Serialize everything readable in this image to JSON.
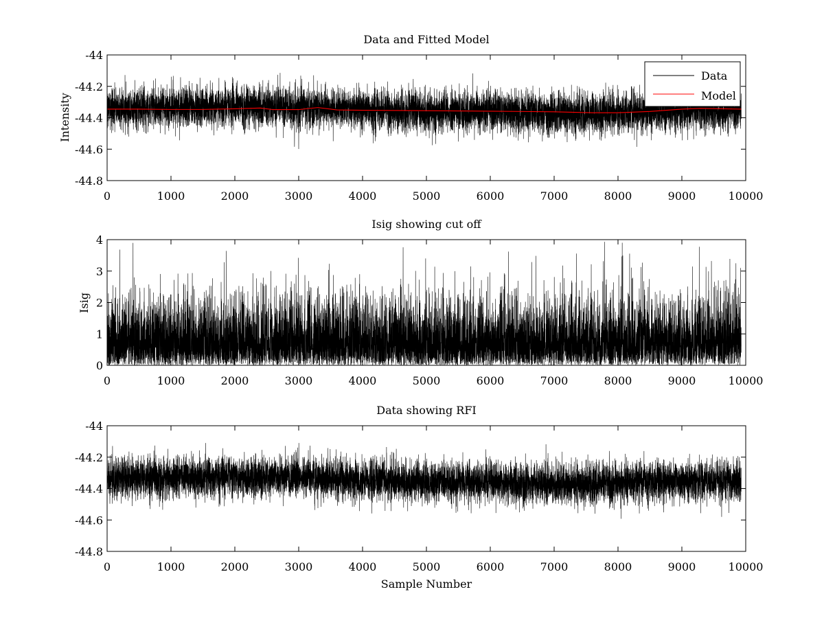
{
  "chart_data": [
    {
      "type": "line",
      "title": "Data and Fitted Model",
      "xlabel": "",
      "ylabel": "Intensity",
      "xlim": [
        0,
        10000
      ],
      "ylim": [
        -44.8,
        -44
      ],
      "xticks": [
        "0",
        "1000",
        "2000",
        "3000",
        "4000",
        "5000",
        "6000",
        "7000",
        "8000",
        "9000",
        "10000"
      ],
      "yticks": [
        "-44",
        "-44.2",
        "-44.4",
        "-44.6",
        "-44.8"
      ],
      "grid": false,
      "legend": "top-right",
      "series": [
        {
          "name": "Data",
          "color": "#000000",
          "n_points": 9930,
          "baseline": {
            "x": [
              0,
              1000,
              2000,
              3000,
              4000,
              5000,
              6000,
              7000,
              8000,
              9000,
              9930
            ],
            "y": [
              -44.34,
              -44.33,
              -44.33,
              -44.33,
              -44.35,
              -44.36,
              -44.36,
              -44.37,
              -44.37,
              -44.35,
              -44.35
            ]
          },
          "noise_sd": 0.065,
          "range": [
            -44.6,
            -44.11
          ]
        },
        {
          "name": "Model",
          "color": "#ff0000",
          "x": [
            0,
            500,
            1000,
            1500,
            2000,
            2400,
            2600,
            3000,
            3300,
            3600,
            4000,
            5000,
            6000,
            7000,
            7600,
            8000,
            8500,
            9000,
            9300,
            9930
          ],
          "y": [
            -44.345,
            -44.345,
            -44.347,
            -44.347,
            -44.343,
            -44.338,
            -44.348,
            -44.348,
            -44.335,
            -44.35,
            -44.352,
            -44.355,
            -44.358,
            -44.362,
            -44.368,
            -44.368,
            -44.36,
            -44.345,
            -44.34,
            -44.345
          ]
        }
      ]
    },
    {
      "type": "line",
      "title": "Isig showing cut off",
      "xlabel": "",
      "ylabel": "Isig",
      "xlim": [
        0,
        10000
      ],
      "ylim": [
        0,
        4
      ],
      "xticks": [
        "0",
        "1000",
        "2000",
        "3000",
        "4000",
        "5000",
        "6000",
        "7000",
        "8000",
        "9000",
        "10000"
      ],
      "yticks": [
        "0",
        "1",
        "2",
        "3",
        "4"
      ],
      "grid": false,
      "series": [
        {
          "name": "",
          "color": "#000000",
          "n_points": 9930,
          "distribution": "abs-normal",
          "sd": 1.0,
          "range": [
            0,
            3.95
          ]
        }
      ]
    },
    {
      "type": "line",
      "title": "Data showing RFI",
      "xlabel": "Sample Number",
      "ylabel": "",
      "xlim": [
        0,
        10000
      ],
      "ylim": [
        -44.8,
        -44
      ],
      "xticks": [
        "0",
        "1000",
        "2000",
        "3000",
        "4000",
        "5000",
        "6000",
        "7000",
        "8000",
        "9000",
        "10000"
      ],
      "yticks": [
        "-44",
        "-44.2",
        "-44.4",
        "-44.6",
        "-44.8"
      ],
      "grid": false,
      "series": [
        {
          "name": "",
          "color": "#000000",
          "n_points": 9930,
          "baseline": {
            "x": [
              0,
              1000,
              2000,
              3000,
              4000,
              5000,
              6000,
              7000,
              8000,
              9000,
              9930
            ],
            "y": [
              -44.34,
              -44.33,
              -44.33,
              -44.33,
              -44.35,
              -44.36,
              -44.36,
              -44.37,
              -44.37,
              -44.35,
              -44.35
            ]
          },
          "noise_sd": 0.065,
          "range": [
            -44.6,
            -44.11
          ]
        }
      ]
    }
  ]
}
